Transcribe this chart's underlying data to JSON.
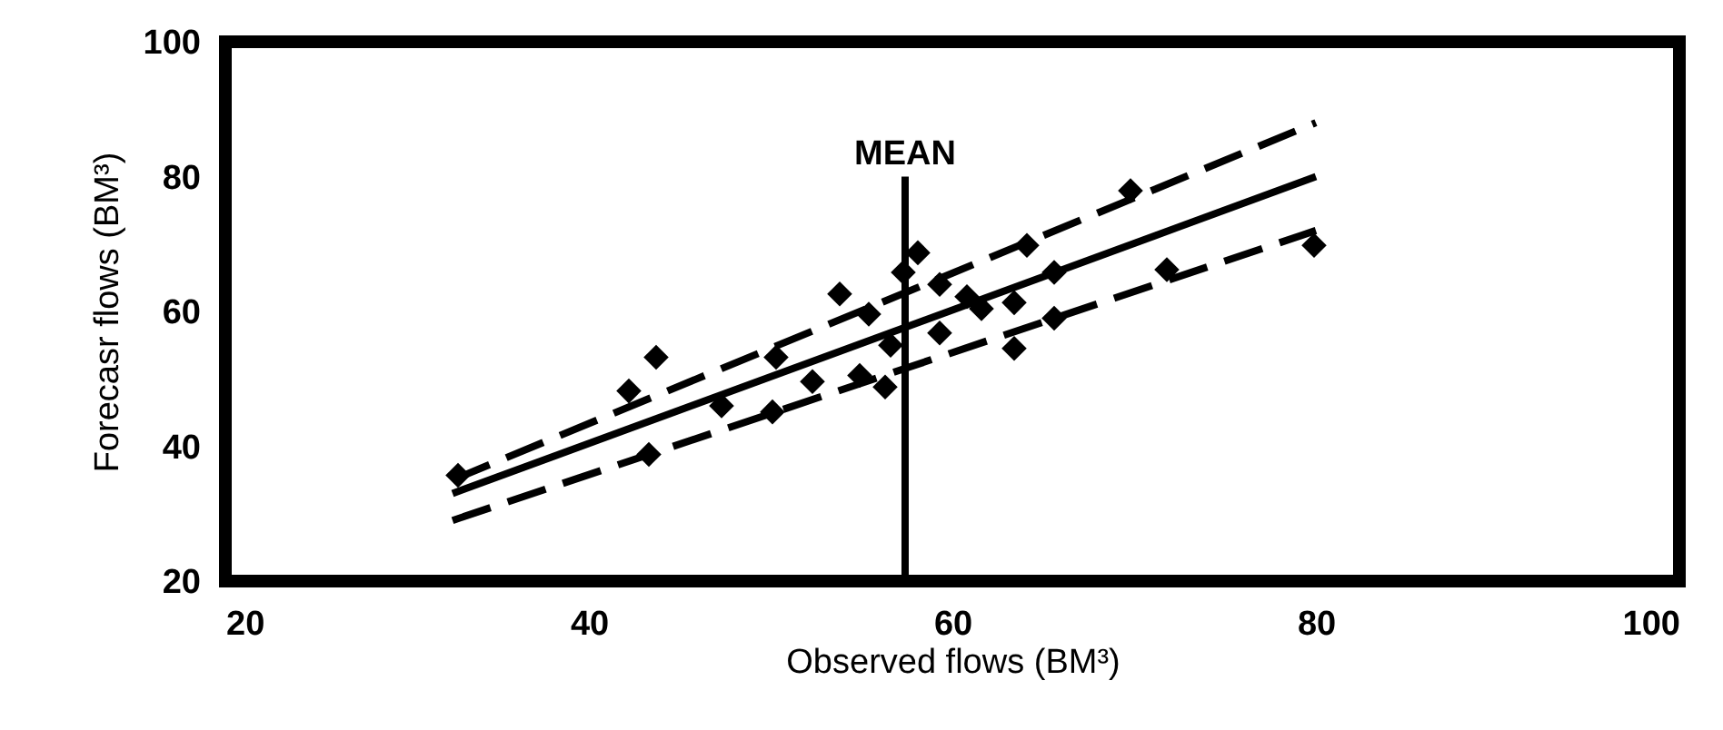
{
  "chart_data": {
    "type": "scatter",
    "xlabel": "Observed flows (BM³)",
    "ylabel": "Forecasr flows (BM³)",
    "xlim": [
      20,
      100
    ],
    "ylim": [
      20,
      100
    ],
    "xticks": [
      20,
      40,
      60,
      80,
      100
    ],
    "yticks": [
      20,
      40,
      60,
      80,
      100
    ],
    "grid": false,
    "series": [
      {
        "color": "#000000",
        "marker": "diamond",
        "x": [
          32.8,
          42.2,
          43.7,
          43.3,
          47.3,
          50.3,
          50.1,
          52.3,
          53.8,
          55.4,
          54.9,
          56.3,
          58.1,
          57.3,
          56.6,
          59.3,
          59.3,
          60.8,
          61.6,
          64.1,
          65.6,
          65.6,
          63.4,
          63.4,
          69.8,
          71.8,
          79.9
        ],
        "values": [
          35.7,
          48.2,
          53.2,
          38.8,
          46.0,
          53.2,
          45.1,
          49.6,
          62.6,
          59.6,
          50.5,
          48.8,
          68.7,
          65.8,
          55,
          64.0,
          56.8,
          62.2,
          60.4,
          69.8,
          65.8,
          59,
          61.3,
          54.5,
          77.9,
          66.2,
          69.8
        ]
      },
      {
        "type": "line",
        "color": "#000000",
        "line_style": "solid",
        "x": [
          32.5,
          80
        ],
        "values": [
          33,
          80
        ]
      },
      {
        "type": "line",
        "color": "#000000",
        "line_style": "dashed",
        "x": [
          32.5,
          80
        ],
        "values": [
          35,
          88
        ]
      },
      {
        "type": "line",
        "color": "#000000",
        "line_style": "dashed",
        "x": [
          32.5,
          80
        ],
        "values": [
          29,
          72
        ]
      },
      {
        "type": "line",
        "name": "MEAN",
        "color": "#000000",
        "line_style": "solid",
        "x": [
          57.4,
          57.4
        ],
        "values": [
          20,
          80
        ]
      }
    ]
  }
}
